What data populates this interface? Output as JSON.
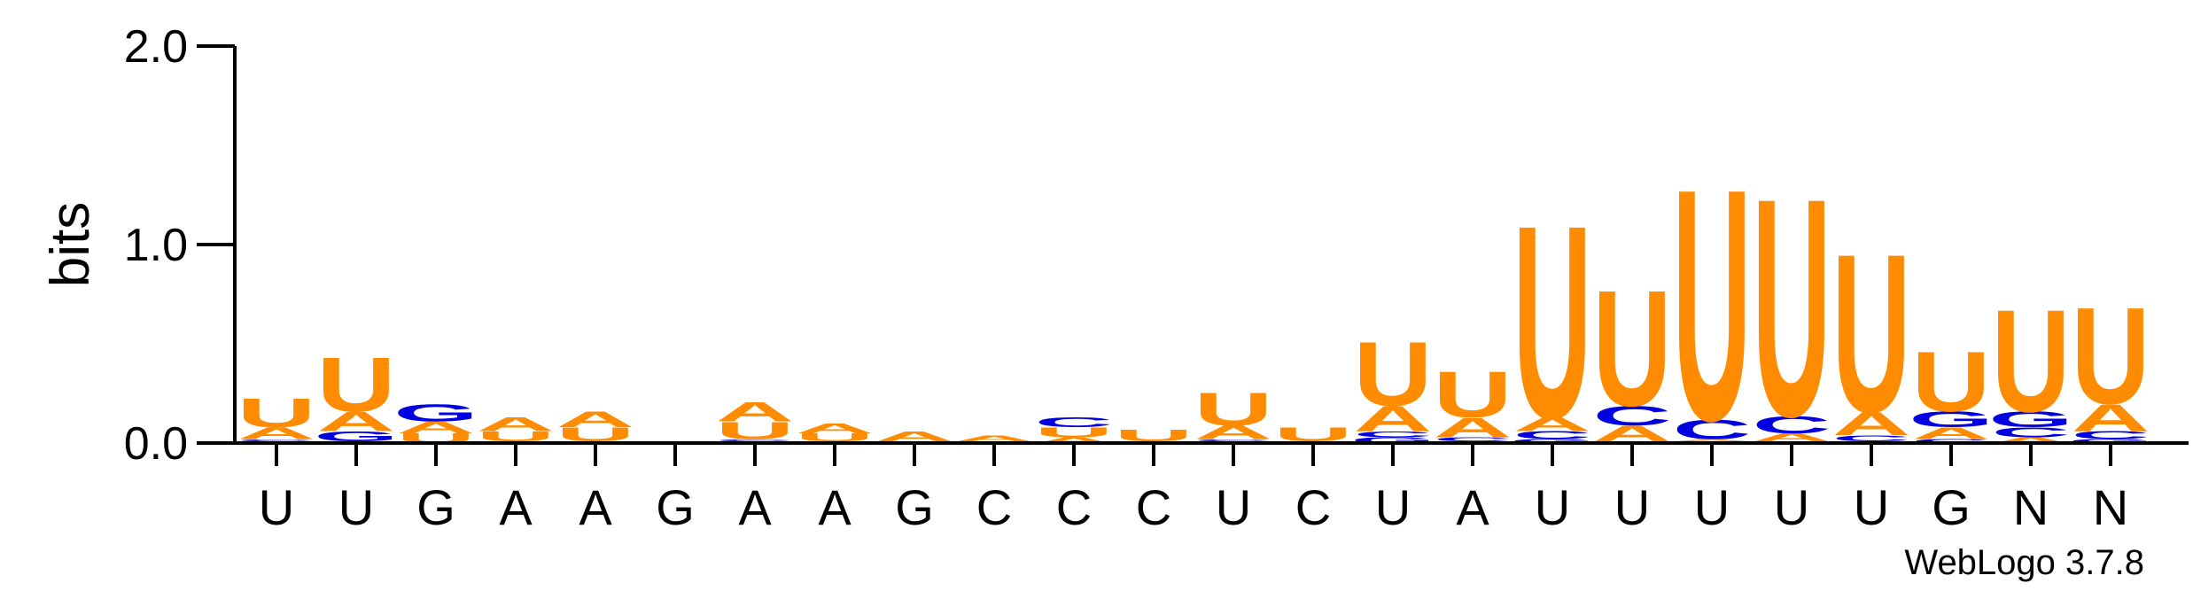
{
  "chart_data": {
    "type": "sequence-logo",
    "ylabel": "bits",
    "ylim": [
      0,
      2.0
    ],
    "yticks": [
      {
        "value": 0.0,
        "label": "0.0"
      },
      {
        "value": 1.0,
        "label": "1.0"
      },
      {
        "value": 2.0,
        "label": "2.0"
      }
    ],
    "credit": "WebLogo 3.7.8",
    "colors": {
      "A": "#ff8c00",
      "U": "#ff8c00",
      "G": "#0000e0",
      "C": "#0000e0",
      "axis": "#000000"
    },
    "positions": [
      {
        "label": "U",
        "stack": [
          {
            "letter": "G",
            "bits": 0.01
          },
          {
            "letter": "C",
            "bits": 0.01
          },
          {
            "letter": "A",
            "bits": 0.06
          },
          {
            "letter": "U",
            "bits": 0.15
          }
        ]
      },
      {
        "label": "U",
        "stack": [
          {
            "letter": "C",
            "bits": 0.01
          },
          {
            "letter": "G",
            "bits": 0.05
          },
          {
            "letter": "A",
            "bits": 0.1
          },
          {
            "letter": "U",
            "bits": 0.28
          }
        ]
      },
      {
        "label": "G",
        "stack": [
          {
            "letter": "U",
            "bits": 0.05
          },
          {
            "letter": "A",
            "bits": 0.06
          },
          {
            "letter": "G",
            "bits": 0.09
          }
        ]
      },
      {
        "label": "A",
        "stack": [
          {
            "letter": "G",
            "bits": 0.01
          },
          {
            "letter": "U",
            "bits": 0.05
          },
          {
            "letter": "A",
            "bits": 0.07
          }
        ]
      },
      {
        "label": "A",
        "stack": [
          {
            "letter": "G",
            "bits": 0.01
          },
          {
            "letter": "U",
            "bits": 0.07
          },
          {
            "letter": "A",
            "bits": 0.08
          }
        ]
      },
      {
        "label": "G",
        "stack": [
          {
            "letter": "G",
            "bits": 0.01
          }
        ]
      },
      {
        "label": "A",
        "stack": [
          {
            "letter": "G",
            "bits": 0.01
          },
          {
            "letter": "C",
            "bits": 0.01
          },
          {
            "letter": "U",
            "bits": 0.09
          },
          {
            "letter": "A",
            "bits": 0.1
          }
        ]
      },
      {
        "label": "A",
        "stack": [
          {
            "letter": "G",
            "bits": 0.01
          },
          {
            "letter": "U",
            "bits": 0.04
          },
          {
            "letter": "A",
            "bits": 0.05
          }
        ]
      },
      {
        "label": "G",
        "stack": [
          {
            "letter": "U",
            "bits": 0.01
          },
          {
            "letter": "A",
            "bits": 0.05
          }
        ]
      },
      {
        "label": "C",
        "stack": [
          {
            "letter": "U",
            "bits": 0.01
          },
          {
            "letter": "A",
            "bits": 0.03
          }
        ]
      },
      {
        "label": "C",
        "stack": [
          {
            "letter": "A",
            "bits": 0.03
          },
          {
            "letter": "U",
            "bits": 0.05
          },
          {
            "letter": "C",
            "bits": 0.05
          }
        ]
      },
      {
        "label": "C",
        "stack": [
          {
            "letter": "A",
            "bits": 0.01
          },
          {
            "letter": "U",
            "bits": 0.06
          }
        ]
      },
      {
        "label": "U",
        "stack": [
          {
            "letter": "G",
            "bits": 0.01
          },
          {
            "letter": "C",
            "bits": 0.01
          },
          {
            "letter": "A",
            "bits": 0.07
          },
          {
            "letter": "U",
            "bits": 0.17
          }
        ]
      },
      {
        "label": "C",
        "stack": [
          {
            "letter": "A",
            "bits": 0.01
          },
          {
            "letter": "U",
            "bits": 0.07
          }
        ]
      },
      {
        "label": "U",
        "stack": [
          {
            "letter": "G",
            "bits": 0.03
          },
          {
            "letter": "C",
            "bits": 0.03
          },
          {
            "letter": "A",
            "bits": 0.13
          },
          {
            "letter": "U",
            "bits": 0.33
          }
        ]
      },
      {
        "label": "A",
        "stack": [
          {
            "letter": "G",
            "bits": 0.01
          },
          {
            "letter": "C",
            "bits": 0.02
          },
          {
            "letter": "A",
            "bits": 0.1
          },
          {
            "letter": "U",
            "bits": 0.24
          }
        ]
      },
      {
        "label": "U",
        "stack": [
          {
            "letter": "G",
            "bits": 0.02
          },
          {
            "letter": "C",
            "bits": 0.04
          },
          {
            "letter": "A",
            "bits": 0.07
          },
          {
            "letter": "U",
            "bits": 1.0
          }
        ]
      },
      {
        "label": "U",
        "stack": [
          {
            "letter": "G",
            "bits": 0.01
          },
          {
            "letter": "A",
            "bits": 0.08
          },
          {
            "letter": "C",
            "bits": 0.1
          },
          {
            "letter": "U",
            "bits": 0.6
          }
        ]
      },
      {
        "label": "U",
        "stack": [
          {
            "letter": "G",
            "bits": 0.01
          },
          {
            "letter": "A",
            "bits": 0.01
          },
          {
            "letter": "C",
            "bits": 0.1
          },
          {
            "letter": "U",
            "bits": 1.2
          }
        ]
      },
      {
        "label": "U",
        "stack": [
          {
            "letter": "G",
            "bits": 0.01
          },
          {
            "letter": "A",
            "bits": 0.04
          },
          {
            "letter": "C",
            "bits": 0.09
          },
          {
            "letter": "U",
            "bits": 1.13
          }
        ]
      },
      {
        "label": "U",
        "stack": [
          {
            "letter": "G",
            "bits": 0.01
          },
          {
            "letter": "C",
            "bits": 0.03
          },
          {
            "letter": "A",
            "bits": 0.12
          },
          {
            "letter": "U",
            "bits": 0.82
          }
        ]
      },
      {
        "label": "G",
        "stack": [
          {
            "letter": "C",
            "bits": 0.02
          },
          {
            "letter": "A",
            "bits": 0.06
          },
          {
            "letter": "G",
            "bits": 0.08
          },
          {
            "letter": "U",
            "bits": 0.31
          }
        ]
      },
      {
        "label": "N",
        "stack": [
          {
            "letter": "A",
            "bits": 0.03
          },
          {
            "letter": "C",
            "bits": 0.05
          },
          {
            "letter": "G",
            "bits": 0.08
          },
          {
            "letter": "U",
            "bits": 0.53
          }
        ]
      },
      {
        "label": "N",
        "stack": [
          {
            "letter": "G",
            "bits": 0.02
          },
          {
            "letter": "C",
            "bits": 0.04
          },
          {
            "letter": "A",
            "bits": 0.14
          },
          {
            "letter": "U",
            "bits": 0.5
          }
        ]
      }
    ]
  }
}
